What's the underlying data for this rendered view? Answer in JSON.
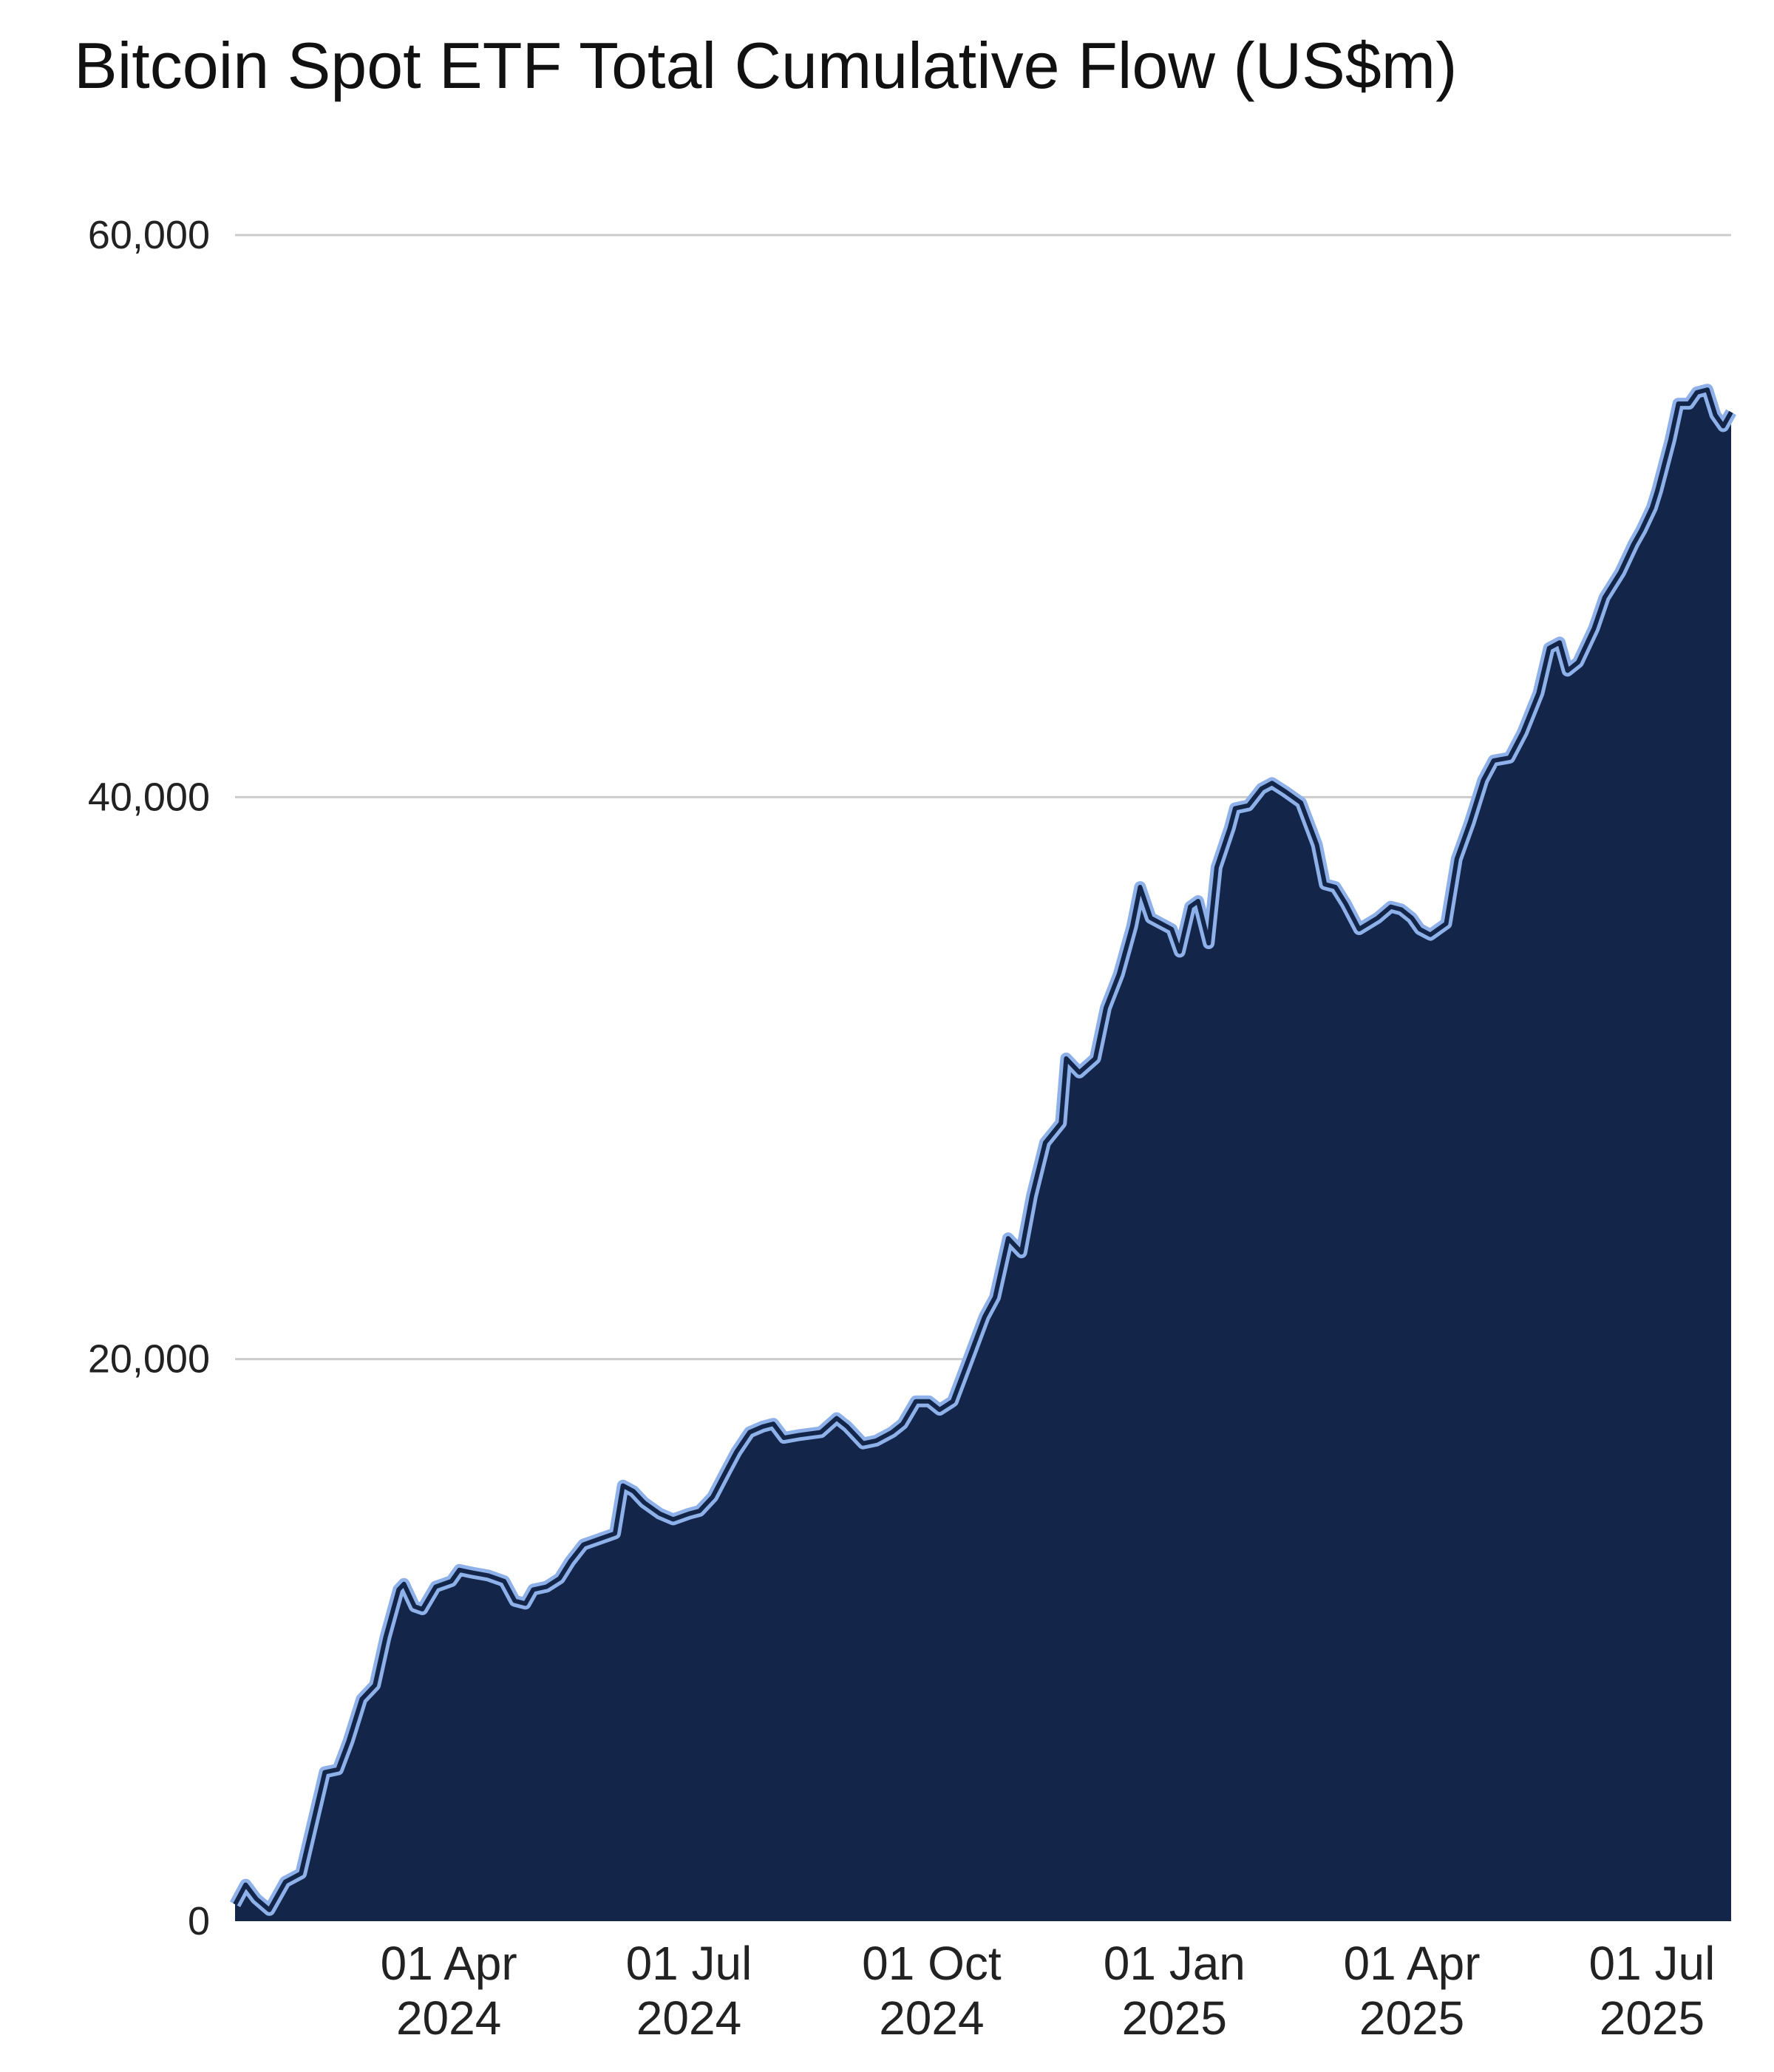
{
  "chart_data": {
    "type": "area",
    "title": "Bitcoin Spot ETF Total Cumulative Flow (US$m)",
    "xlabel": "",
    "ylabel": "",
    "ylim": [
      0,
      60000
    ],
    "grid": "horizontal",
    "legend": "none",
    "y_ticks": [
      "0",
      "20,000",
      "40,000",
      "60,000"
    ],
    "x_ticks": [
      {
        "date": "2024-04-01",
        "line1": "01 Apr",
        "line2": "2024"
      },
      {
        "date": "2024-07-01",
        "line1": "01 Jul",
        "line2": "2024"
      },
      {
        "date": "2024-10-01",
        "line1": "01 Oct",
        "line2": "2024"
      },
      {
        "date": "2025-01-01",
        "line1": "01 Jan",
        "line2": "2025"
      },
      {
        "date": "2025-04-01",
        "line1": "01 Apr",
        "line2": "2025"
      },
      {
        "date": "2025-07-01",
        "line1": "01 Jul",
        "line2": "2025"
      }
    ],
    "x_range": [
      "2024-01-11",
      "2025-07-31"
    ],
    "colors": {
      "fill": "#13264a",
      "line": "#8fb1ea",
      "line_inner": "#13264a",
      "grid": "#cccccc"
    },
    "series": [
      {
        "points": [
          [
            "2024-01-11",
            600
          ],
          [
            "2024-01-15",
            1300
          ],
          [
            "2024-01-19",
            800
          ],
          [
            "2024-01-24",
            400
          ],
          [
            "2024-01-30",
            1400
          ],
          [
            "2024-02-05",
            1700
          ],
          [
            "2024-02-09",
            3300
          ],
          [
            "2024-02-14",
            5300
          ],
          [
            "2024-02-19",
            5400
          ],
          [
            "2024-02-23",
            6400
          ],
          [
            "2024-02-28",
            7900
          ],
          [
            "2024-03-04",
            8400
          ],
          [
            "2024-03-08",
            10100
          ],
          [
            "2024-03-13",
            11800
          ],
          [
            "2024-03-15",
            12000
          ],
          [
            "2024-03-19",
            11200
          ],
          [
            "2024-03-22",
            11100
          ],
          [
            "2024-03-27",
            11900
          ],
          [
            "2024-04-02",
            12100
          ],
          [
            "2024-04-05",
            12500
          ],
          [
            "2024-04-10",
            12400
          ],
          [
            "2024-04-16",
            12300
          ],
          [
            "2024-04-22",
            12100
          ],
          [
            "2024-04-26",
            11400
          ],
          [
            "2024-04-30",
            11300
          ],
          [
            "2024-05-03",
            11800
          ],
          [
            "2024-05-08",
            11900
          ],
          [
            "2024-05-13",
            12200
          ],
          [
            "2024-05-17",
            12800
          ],
          [
            "2024-05-22",
            13400
          ],
          [
            "2024-05-28",
            13600
          ],
          [
            "2024-06-03",
            13800
          ],
          [
            "2024-06-06",
            15500
          ],
          [
            "2024-06-10",
            15300
          ],
          [
            "2024-06-14",
            14900
          ],
          [
            "2024-06-20",
            14500
          ],
          [
            "2024-06-25",
            14300
          ],
          [
            "2024-07-01",
            14500
          ],
          [
            "2024-07-05",
            14600
          ],
          [
            "2024-07-10",
            15100
          ],
          [
            "2024-07-15",
            16000
          ],
          [
            "2024-07-19",
            16700
          ],
          [
            "2024-07-24",
            17400
          ],
          [
            "2024-07-29",
            17600
          ],
          [
            "2024-08-02",
            17700
          ],
          [
            "2024-08-06",
            17200
          ],
          [
            "2024-08-12",
            17300
          ],
          [
            "2024-08-20",
            17400
          ],
          [
            "2024-08-26",
            17900
          ],
          [
            "2024-08-30",
            17600
          ],
          [
            "2024-09-05",
            17000
          ],
          [
            "2024-09-10",
            17100
          ],
          [
            "2024-09-16",
            17400
          ],
          [
            "2024-09-20",
            17700
          ],
          [
            "2024-09-25",
            18500
          ],
          [
            "2024-09-30",
            18500
          ],
          [
            "2024-10-04",
            18200
          ],
          [
            "2024-10-09",
            18500
          ],
          [
            "2024-10-15",
            20000
          ],
          [
            "2024-10-21",
            21500
          ],
          [
            "2024-10-25",
            22200
          ],
          [
            "2024-10-30",
            24300
          ],
          [
            "2024-11-04",
            23800
          ],
          [
            "2024-11-08",
            25800
          ],
          [
            "2024-11-13",
            27700
          ],
          [
            "2024-11-19",
            28400
          ],
          [
            "2024-11-21",
            30700
          ],
          [
            "2024-11-26",
            30200
          ],
          [
            "2024-12-02",
            30700
          ],
          [
            "2024-12-06",
            32500
          ],
          [
            "2024-12-11",
            33700
          ],
          [
            "2024-12-16",
            35400
          ],
          [
            "2024-12-19",
            36800
          ],
          [
            "2024-12-23",
            35700
          ],
          [
            "2024-12-31",
            35300
          ],
          [
            "2025-01-03",
            34500
          ],
          [
            "2025-01-07",
            36100
          ],
          [
            "2025-01-10",
            36300
          ],
          [
            "2025-01-14",
            34800
          ],
          [
            "2025-01-17",
            37500
          ],
          [
            "2025-01-22",
            38900
          ],
          [
            "2025-01-24",
            39600
          ],
          [
            "2025-01-29",
            39700
          ],
          [
            "2025-02-03",
            40300
          ],
          [
            "2025-02-07",
            40500
          ],
          [
            "2025-02-12",
            40200
          ],
          [
            "2025-02-18",
            39800
          ],
          [
            "2025-02-24",
            38300
          ],
          [
            "2025-02-27",
            36900
          ],
          [
            "2025-03-03",
            36800
          ],
          [
            "2025-03-07",
            36200
          ],
          [
            "2025-03-12",
            35300
          ],
          [
            "2025-03-19",
            35700
          ],
          [
            "2025-03-24",
            36100
          ],
          [
            "2025-03-28",
            36000
          ],
          [
            "2025-04-01",
            35700
          ],
          [
            "2025-04-04",
            35300
          ],
          [
            "2025-04-08",
            35100
          ],
          [
            "2025-04-14",
            35500
          ],
          [
            "2025-04-18",
            37800
          ],
          [
            "2025-04-23",
            39100
          ],
          [
            "2025-04-28",
            40600
          ],
          [
            "2025-05-02",
            41300
          ],
          [
            "2025-05-08",
            41400
          ],
          [
            "2025-05-13",
            42300
          ],
          [
            "2025-05-19",
            43700
          ],
          [
            "2025-05-23",
            45300
          ],
          [
            "2025-05-27",
            45500
          ],
          [
            "2025-05-30",
            44500
          ],
          [
            "2025-06-03",
            44800
          ],
          [
            "2025-06-09",
            46000
          ],
          [
            "2025-06-13",
            47100
          ],
          [
            "2025-06-19",
            48000
          ],
          [
            "2025-06-24",
            49000
          ],
          [
            "2025-06-27",
            49500
          ],
          [
            "2025-07-01",
            50300
          ],
          [
            "2025-07-03",
            50900
          ],
          [
            "2025-07-08",
            52700
          ],
          [
            "2025-07-11",
            54000
          ],
          [
            "2025-07-15",
            54000
          ],
          [
            "2025-07-18",
            54400
          ],
          [
            "2025-07-22",
            54500
          ],
          [
            "2025-07-25",
            53600
          ],
          [
            "2025-07-28",
            53200
          ],
          [
            "2025-07-31",
            53700
          ]
        ]
      }
    ]
  }
}
